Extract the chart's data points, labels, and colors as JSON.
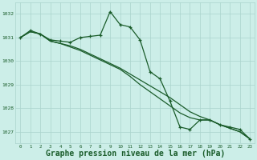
{
  "background_color": "#cceee8",
  "grid_color": "#aad4cc",
  "line_color": "#1a5c2a",
  "xlabel": "Graphe pression niveau de la mer (hPa)",
  "xlabel_fontsize": 7,
  "ylim": [
    1026.5,
    1032.5
  ],
  "yticks": [
    1027,
    1028,
    1029,
    1030,
    1031,
    1032
  ],
  "xlim": [
    -0.5,
    23.5
  ],
  "xticks": [
    0,
    1,
    2,
    3,
    4,
    5,
    6,
    7,
    8,
    9,
    10,
    11,
    12,
    13,
    14,
    15,
    16,
    17,
    18,
    19,
    20,
    21,
    22,
    23
  ],
  "series1": [
    1031.0,
    1031.3,
    1031.15,
    1030.9,
    1030.85,
    1030.8,
    1031.0,
    1031.05,
    1031.1,
    1032.1,
    1031.55,
    1031.45,
    1030.9,
    1029.55,
    1029.25,
    1028.3,
    1027.2,
    1027.1,
    1027.5,
    1027.5,
    1027.3,
    1027.2,
    1027.1,
    1026.7
  ],
  "series2": [
    1031.0,
    1031.25,
    1031.15,
    1030.85,
    1030.75,
    1030.65,
    1030.5,
    1030.3,
    1030.1,
    1029.9,
    1029.7,
    1029.45,
    1029.2,
    1028.95,
    1028.7,
    1028.45,
    1028.15,
    1027.85,
    1027.65,
    1027.5,
    1027.3,
    1027.15,
    1027.0,
    1026.7
  ],
  "series3": [
    1031.0,
    1031.25,
    1031.15,
    1030.85,
    1030.75,
    1030.6,
    1030.45,
    1030.25,
    1030.05,
    1029.85,
    1029.65,
    1029.35,
    1029.0,
    1028.7,
    1028.4,
    1028.1,
    1027.8,
    1027.6,
    1027.5,
    1027.5,
    1027.3,
    1027.15,
    1027.0,
    1026.7
  ]
}
